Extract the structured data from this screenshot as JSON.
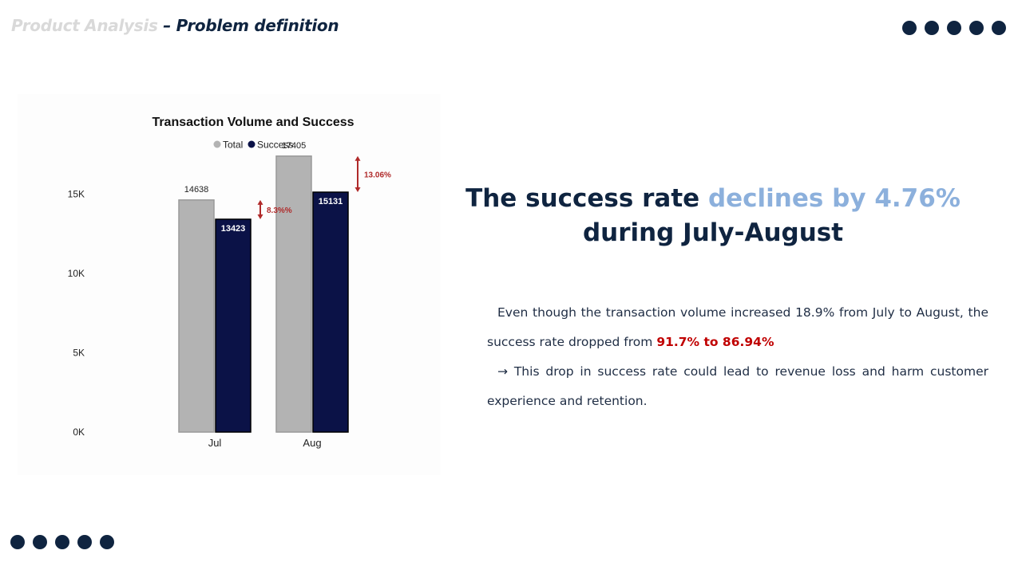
{
  "header": {
    "title_dim": "Product Analysis",
    "title_main": " – Problem definition"
  },
  "chart_data": {
    "type": "bar",
    "title": "Transaction Volume and Success",
    "categories": [
      "Jul",
      "Aug"
    ],
    "series": [
      {
        "name": "Total",
        "values": [
          14638,
          17405
        ],
        "color": "#b3b3b3"
      },
      {
        "name": "Success",
        "values": [
          13423,
          15131
        ],
        "color": "#0b1247"
      }
    ],
    "y_ticks": [
      {
        "value": 0,
        "label": "0K"
      },
      {
        "value": 5000,
        "label": "5K"
      },
      {
        "value": 10000,
        "label": "10K"
      },
      {
        "value": 15000,
        "label": "15K"
      }
    ],
    "ylim": [
      0,
      18500
    ],
    "xlabel": "",
    "ylabel": "",
    "legend_position": "top-center",
    "annotations": [
      {
        "category": "Jul",
        "label": "8.3%%"
      },
      {
        "category": "Aug",
        "label": "13.06%"
      }
    ],
    "annotation_color": "#b02a2a"
  },
  "headline": {
    "part1": "The success rate ",
    "highlight": "declines by 4.76%",
    "part2": "during July-August"
  },
  "body": {
    "p1_text": "Even though the transaction volume increased 18.9% from July to  August, the success rate dropped from ",
    "p1_highlight": "91.7% to 86.94%",
    "p2_text": "→ This drop in success rate could lead to revenue loss and harm customer experience and retention."
  },
  "colors": {
    "navy": "#0f2440",
    "accent_light_blue": "#8cb0dc",
    "alert_red": "#c00000"
  }
}
